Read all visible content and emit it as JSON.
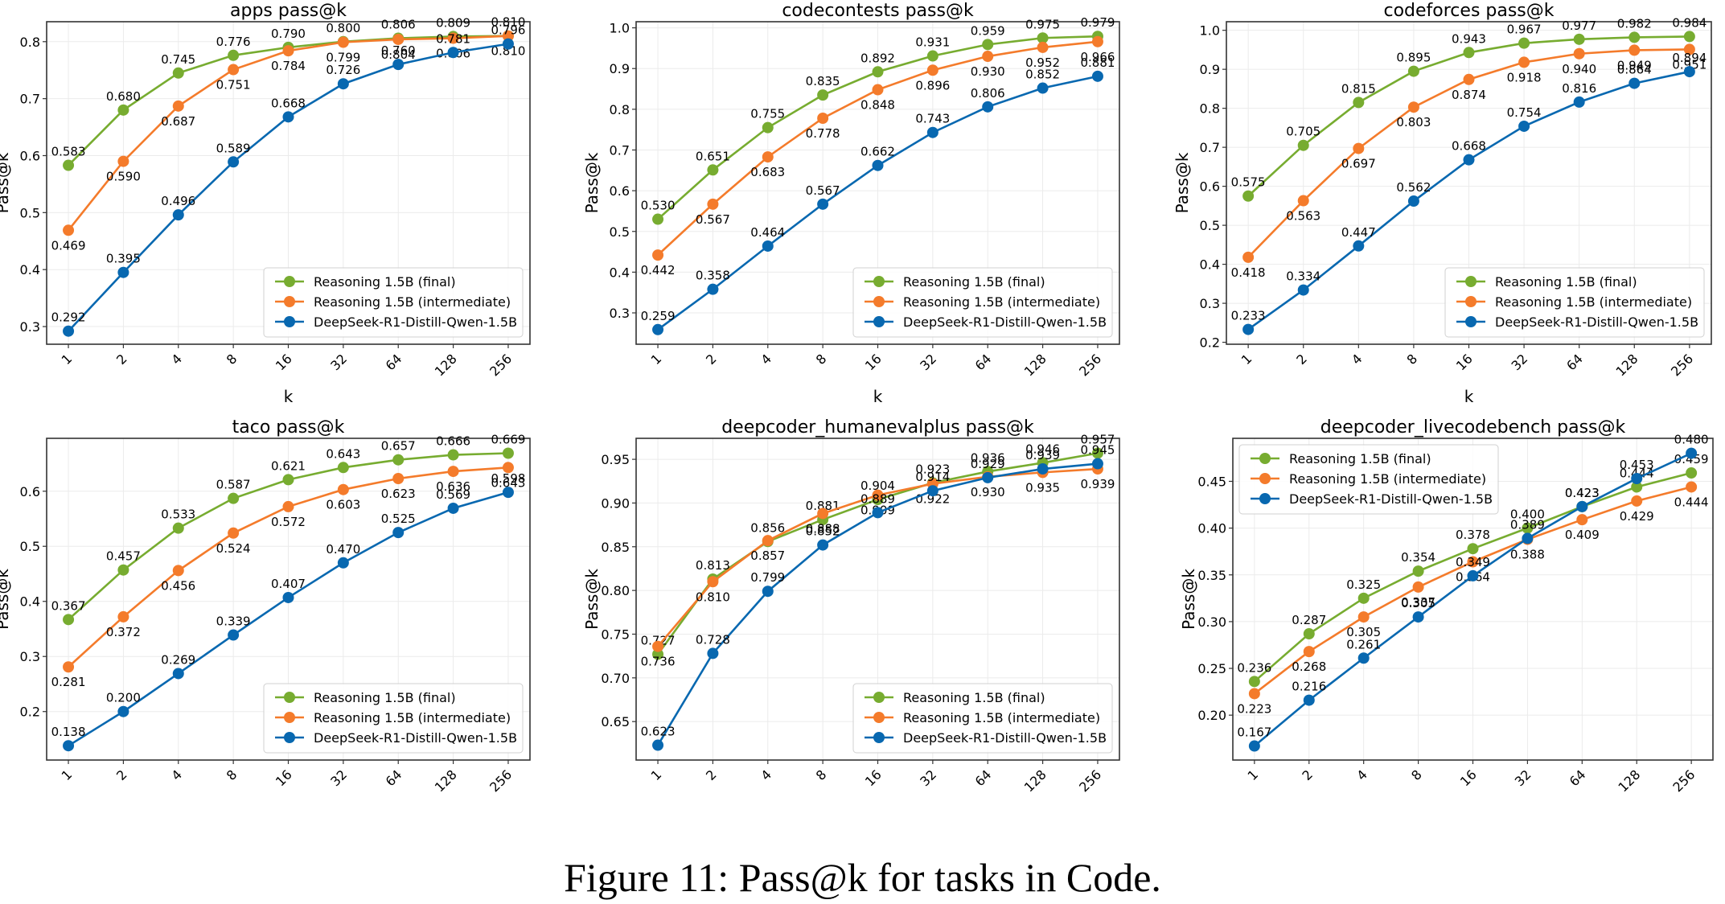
{
  "caption": "Figure 11: Pass@k for tasks in Code.",
  "chart_data": [
    {
      "type": "line",
      "title": "apps pass@k",
      "xlabel": "k",
      "ylabel": "Pass@k",
      "categories": [
        "1",
        "2",
        "4",
        "8",
        "16",
        "32",
        "64",
        "128",
        "256"
      ],
      "yticks": [
        "0.3",
        "0.4",
        "0.5",
        "0.6",
        "0.7",
        "0.8"
      ],
      "ylim": [
        0.269,
        0.835
      ],
      "grid": true,
      "legend_position": "bottom-right",
      "series": [
        {
          "name": "Reasoning 1.5B (final)",
          "color": "#77ac30",
          "values": [
            0.583,
            0.68,
            0.745,
            0.776,
            0.79,
            0.8,
            0.806,
            0.809,
            0.81
          ]
        },
        {
          "name": "Reasoning 1.5B (intermediate)",
          "color": "#f47b2b",
          "values": [
            0.469,
            0.59,
            0.687,
            0.751,
            0.784,
            0.799,
            0.804,
            0.806,
            0.81
          ]
        },
        {
          "name": "DeepSeek-R1-Distill-Qwen-1.5B",
          "color": "#0868b0",
          "values": [
            0.292,
            0.395,
            0.496,
            0.589,
            0.668,
            0.726,
            0.76,
            0.781,
            0.796
          ]
        }
      ]
    },
    {
      "type": "line",
      "title": "codecontests pass@k",
      "xlabel": "k",
      "ylabel": "Pass@k",
      "categories": [
        "1",
        "2",
        "4",
        "8",
        "16",
        "32",
        "64",
        "128",
        "256"
      ],
      "yticks": [
        "0.3",
        "0.4",
        "0.5",
        "0.6",
        "0.7",
        "0.8",
        "0.9",
        "1.0"
      ],
      "ylim": [
        0.223,
        1.015
      ],
      "grid": true,
      "legend_position": "bottom-right",
      "series": [
        {
          "name": "Reasoning 1.5B (final)",
          "color": "#77ac30",
          "values": [
            0.53,
            0.651,
            0.755,
            0.835,
            0.892,
            0.931,
            0.959,
            0.975,
            0.979
          ]
        },
        {
          "name": "Reasoning 1.5B (intermediate)",
          "color": "#f47b2b",
          "values": [
            0.442,
            0.567,
            0.683,
            0.778,
            0.848,
            0.896,
            0.93,
            0.952,
            0.966
          ]
        },
        {
          "name": "DeepSeek-R1-Distill-Qwen-1.5B",
          "color": "#0868b0",
          "values": [
            0.259,
            0.358,
            0.464,
            0.567,
            0.662,
            0.743,
            0.806,
            0.852,
            0.881
          ]
        }
      ]
    },
    {
      "type": "line",
      "title": "codeforces pass@k",
      "xlabel": "k",
      "ylabel": "Pass@k",
      "categories": [
        "1",
        "2",
        "4",
        "8",
        "16",
        "32",
        "64",
        "128",
        "256"
      ],
      "yticks": [
        "0.2",
        "0.3",
        "0.4",
        "0.5",
        "0.6",
        "0.7",
        "0.8",
        "0.9",
        "1.0"
      ],
      "ylim": [
        0.195,
        1.022
      ],
      "grid": true,
      "legend_position": "bottom-right",
      "series": [
        {
          "name": "Reasoning 1.5B (final)",
          "color": "#77ac30",
          "values": [
            0.575,
            0.705,
            0.815,
            0.895,
            0.943,
            0.967,
            0.977,
            0.982,
            0.984
          ]
        },
        {
          "name": "Reasoning 1.5B (intermediate)",
          "color": "#f47b2b",
          "values": [
            0.418,
            0.563,
            0.697,
            0.803,
            0.874,
            0.918,
            0.94,
            0.949,
            0.951
          ]
        },
        {
          "name": "DeepSeek-R1-Distill-Qwen-1.5B",
          "color": "#0868b0",
          "values": [
            0.233,
            0.334,
            0.447,
            0.562,
            0.668,
            0.754,
            0.816,
            0.864,
            0.894
          ]
        }
      ]
    },
    {
      "type": "line",
      "title": "taco pass@k",
      "xlabel": "k",
      "ylabel": "Pass@k",
      "categories": [
        "1",
        "2",
        "4",
        "8",
        "16",
        "32",
        "64",
        "128",
        "256"
      ],
      "yticks": [
        "0.2",
        "0.3",
        "0.4",
        "0.5",
        "0.6"
      ],
      "ylim": [
        0.112,
        0.696
      ],
      "grid": true,
      "legend_position": "bottom-right",
      "series": [
        {
          "name": "Reasoning 1.5B (final)",
          "color": "#77ac30",
          "values": [
            0.367,
            0.457,
            0.533,
            0.587,
            0.621,
            0.643,
            0.657,
            0.666,
            0.669
          ]
        },
        {
          "name": "Reasoning 1.5B (intermediate)",
          "color": "#f47b2b",
          "values": [
            0.281,
            0.372,
            0.456,
            0.524,
            0.572,
            0.603,
            0.623,
            0.636,
            0.643
          ]
        },
        {
          "name": "DeepSeek-R1-Distill-Qwen-1.5B",
          "color": "#0868b0",
          "values": [
            0.138,
            0.2,
            0.269,
            0.339,
            0.407,
            0.47,
            0.525,
            0.569,
            0.598
          ]
        }
      ]
    },
    {
      "type": "line",
      "title": "deepcoder_humanevalplus pass@k",
      "xlabel": "k",
      "ylabel": "Pass@k",
      "categories": [
        "1",
        "2",
        "4",
        "8",
        "16",
        "32",
        "64",
        "128",
        "256"
      ],
      "yticks": [
        "0.65",
        "0.70",
        "0.75",
        "0.80",
        "0.85",
        "0.90",
        "0.95"
      ],
      "ylim": [
        0.606,
        0.974
      ],
      "grid": true,
      "legend_position": "bottom-right",
      "series": [
        {
          "name": "Reasoning 1.5B (final)",
          "color": "#77ac30",
          "values": [
            0.727,
            0.813,
            0.856,
            0.881,
            0.904,
            0.923,
            0.936,
            0.946,
            0.957
          ]
        },
        {
          "name": "Reasoning 1.5B (intermediate)",
          "color": "#f47b2b",
          "values": [
            0.736,
            0.81,
            0.857,
            0.888,
            0.909,
            0.922,
            0.93,
            0.935,
            0.939
          ]
        },
        {
          "name": "DeepSeek-R1-Distill-Qwen-1.5B",
          "color": "#0868b0",
          "values": [
            0.623,
            0.728,
            0.799,
            0.852,
            0.889,
            0.914,
            0.929,
            0.939,
            0.945
          ]
        }
      ]
    },
    {
      "type": "line",
      "title": "deepcoder_livecodebench pass@k",
      "xlabel": "k",
      "ylabel": "Pass@k",
      "categories": [
        "1",
        "2",
        "4",
        "8",
        "16",
        "32",
        "64",
        "128",
        "256"
      ],
      "yticks": [
        "0.20",
        "0.25",
        "0.30",
        "0.35",
        "0.40",
        "0.45"
      ],
      "ylim": [
        0.152,
        0.496
      ],
      "grid": true,
      "legend_position": "top-left",
      "series": [
        {
          "name": "Reasoning 1.5B (final)",
          "color": "#77ac30",
          "values": [
            0.236,
            0.287,
            0.325,
            0.354,
            0.378,
            0.4,
            0.423,
            0.444,
            0.459
          ]
        },
        {
          "name": "Reasoning 1.5B (intermediate)",
          "color": "#f47b2b",
          "values": [
            0.223,
            0.268,
            0.305,
            0.337,
            0.364,
            0.388,
            0.409,
            0.429,
            0.444
          ]
        },
        {
          "name": "DeepSeek-R1-Distill-Qwen-1.5B",
          "color": "#0868b0",
          "values": [
            0.167,
            0.216,
            0.261,
            0.305,
            0.349,
            0.389,
            0.423,
            0.453,
            0.48
          ]
        }
      ]
    }
  ]
}
